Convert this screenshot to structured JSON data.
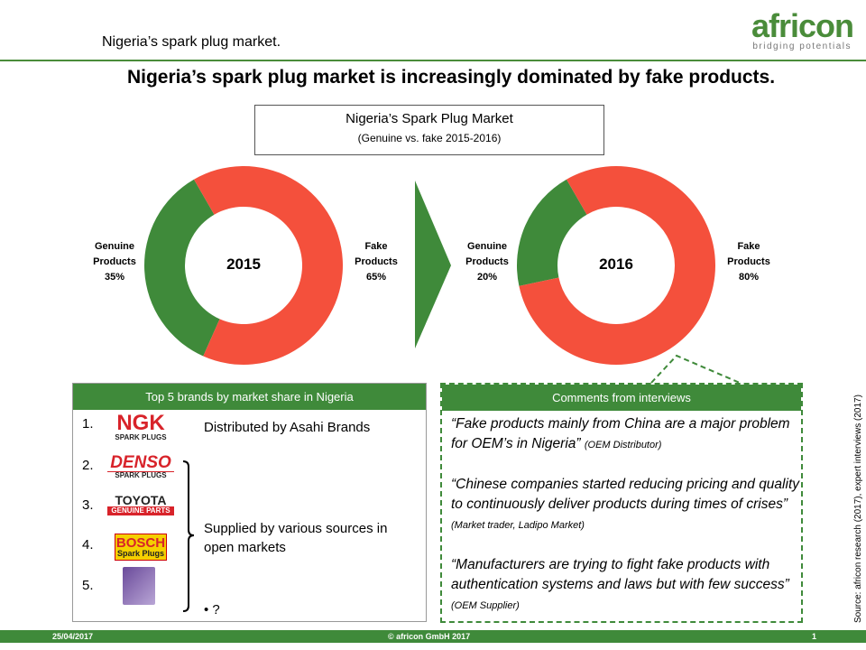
{
  "header": {
    "subtitle": "Nigeria’s spark plug market.",
    "logo": "africon",
    "logo_tagline": "bridging potentials"
  },
  "title": "Nigeria’s spark plug market is increasingly dominated by fake products.",
  "chart_box": {
    "title": "Nigeria’s Spark Plug Market",
    "subtitle": "(Genuine vs. fake 2015-2016)"
  },
  "chart_data": [
    {
      "type": "donut",
      "center_label": "2015",
      "categories": [
        "Genuine Products",
        "Fake Products"
      ],
      "values": [
        35,
        65
      ],
      "value_labels": [
        "35%",
        "65%"
      ],
      "colors": [
        "#3f8a3a",
        "#f4503c"
      ]
    },
    {
      "type": "donut",
      "center_label": "2016",
      "categories": [
        "Genuine Products",
        "Fake Products"
      ],
      "values": [
        20,
        80
      ],
      "value_labels": [
        "20%",
        "80%"
      ],
      "colors": [
        "#3f8a3a",
        "#f4503c"
      ]
    }
  ],
  "brands_box": {
    "title": "Top 5 brands by market share in Nigeria",
    "items": [
      {
        "number": "1.",
        "logo": "NGK",
        "logo_sub": "SPARK PLUGS"
      },
      {
        "number": "2.",
        "logo": "DENSO",
        "logo_sub": "SPARK PLUGS"
      },
      {
        "number": "3.",
        "logo": "TOYOTA",
        "logo_sub": "GENUINE PARTS"
      },
      {
        "number": "4.",
        "logo": "BOSCH",
        "logo_sub": "Spark Plugs"
      },
      {
        "number": "5."
      }
    ],
    "distributed": "Distributed by Asahi Brands",
    "supplied": "Supplied by various sources in open markets",
    "bullet": "?"
  },
  "comments_box": {
    "title": "Comments from interviews",
    "comments": [
      {
        "quote": "“Fake products mainly from China are a major problem for OEM’s in Nigeria”",
        "source": "(OEM Distributor)"
      },
      {
        "quote": "“Chinese companies started reducing pricing and quality to continuously deliver products during times of crises”",
        "source": "(Market trader, Ladipo Market)"
      },
      {
        "quote": "“Manufacturers are trying to fight fake products with authentication systems and laws but with few success”",
        "source": "(OEM Supplier)"
      }
    ]
  },
  "source_note": "Source: africon research (2017), expert interviews (2017)",
  "footer": {
    "date": "25/04/2017",
    "copyright": "© africon GmbH 2017",
    "page": "1"
  }
}
